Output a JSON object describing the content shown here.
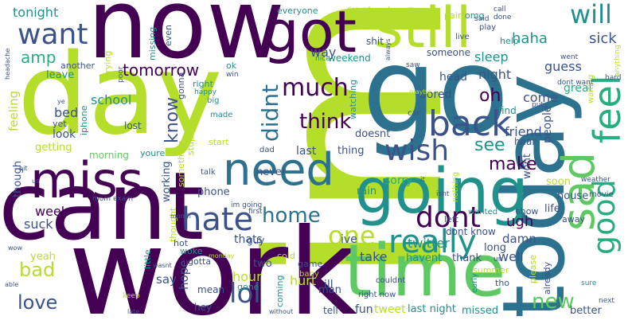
{
  "palette": {
    "purple": "#440154",
    "indigo": "#3b528b",
    "blue": "#2c728e",
    "teal": "#21918c",
    "green": "#27ad81",
    "lightgreen": "#5ec962",
    "lime": "#b5de2b",
    "yellow": "#fde725"
  },
  "words": [
    {
      "text": "im",
      "color": "lime"
    },
    {
      "text": "work",
      "color": "purple"
    },
    {
      "text": "day",
      "color": "lime"
    },
    {
      "text": "cant",
      "color": "purple"
    },
    {
      "text": "go",
      "color": "blue"
    },
    {
      "text": "now",
      "color": "purple"
    },
    {
      "text": "today",
      "color": "blue"
    },
    {
      "text": "time",
      "color": "lightgreen"
    },
    {
      "text": "got",
      "color": "purple"
    },
    {
      "text": "still",
      "color": "lime"
    },
    {
      "text": "miss",
      "color": "purple"
    },
    {
      "text": "going",
      "color": "teal"
    },
    {
      "text": "need",
      "color": "blue"
    },
    {
      "text": "sad",
      "color": "lightgreen"
    },
    {
      "text": "back",
      "color": "indigo"
    },
    {
      "text": "feel",
      "color": "green"
    },
    {
      "text": "hate",
      "color": "indigo"
    },
    {
      "text": "good",
      "color": "green"
    },
    {
      "text": "really",
      "color": "teal"
    },
    {
      "text": "wish",
      "color": "indigo"
    },
    {
      "text": "dont",
      "color": "purple"
    },
    {
      "text": "one",
      "color": "lime"
    },
    {
      "text": "lol",
      "color": "indigo"
    },
    {
      "text": "home",
      "color": "blue"
    },
    {
      "text": "will",
      "color": "teal"
    },
    {
      "text": "want",
      "color": "indigo"
    },
    {
      "text": "much",
      "color": "purple"
    },
    {
      "text": "think",
      "color": "purple"
    },
    {
      "text": "new",
      "color": "lightgreen"
    },
    {
      "text": "bad",
      "color": "lime"
    },
    {
      "text": "love",
      "color": "indigo"
    },
    {
      "text": "didnt",
      "color": "blue"
    },
    {
      "text": "know",
      "color": "indigo"
    },
    {
      "text": "make",
      "color": "purple"
    },
    {
      "text": "see",
      "color": "teal"
    },
    {
      "text": "oh",
      "color": "purple"
    },
    {
      "text": "tomorrow",
      "color": "purple"
    },
    {
      "text": "amp",
      "color": "green"
    },
    {
      "text": "tonight",
      "color": "teal"
    },
    {
      "text": "tired",
      "color": "lime"
    },
    {
      "text": "haha",
      "color": "teal"
    },
    {
      "text": "sick",
      "color": "indigo"
    },
    {
      "text": "guess",
      "color": "indigo"
    },
    {
      "text": "way",
      "color": "indigo"
    },
    {
      "text": "sleep",
      "color": "teal"
    },
    {
      "text": "night",
      "color": "indigo"
    },
    {
      "text": "come",
      "color": "indigo"
    },
    {
      "text": "people",
      "color": "indigo"
    },
    {
      "text": "great",
      "color": "green"
    },
    {
      "text": "feeling",
      "color": "lime"
    },
    {
      "text": "school",
      "color": "teal"
    },
    {
      "text": "bed",
      "color": "indigo"
    },
    {
      "text": "look",
      "color": "indigo"
    },
    {
      "text": "getting",
      "color": "lime"
    },
    {
      "text": "morning",
      "color": "lightgreen"
    },
    {
      "text": "working",
      "color": "indigo"
    },
    {
      "text": "never",
      "color": "indigo"
    },
    {
      "text": "last",
      "color": "indigo"
    },
    {
      "text": "thing",
      "color": "indigo"
    },
    {
      "text": "friend",
      "color": "indigo"
    },
    {
      "text": "sorry",
      "color": "green"
    },
    {
      "text": "rain",
      "color": "teal"
    },
    {
      "text": "wont",
      "color": "indigo"
    },
    {
      "text": "soon",
      "color": "lime"
    },
    {
      "text": "house",
      "color": "indigo"
    },
    {
      "text": "life",
      "color": "indigo"
    },
    {
      "text": "show",
      "color": "indigo"
    },
    {
      "text": "twitter",
      "color": "teal"
    },
    {
      "text": "ugh",
      "color": "purple"
    },
    {
      "text": "long",
      "color": "indigo"
    },
    {
      "text": "week",
      "color": "purple"
    },
    {
      "text": "suck",
      "color": "indigo"
    },
    {
      "text": "yeah",
      "color": "lime"
    },
    {
      "text": "say",
      "color": "indigo"
    },
    {
      "text": "hope",
      "color": "indigo"
    },
    {
      "text": "hour",
      "color": "lime"
    },
    {
      "text": "hurt",
      "color": "lime"
    },
    {
      "text": "ill",
      "color": "indigo"
    },
    {
      "text": "take",
      "color": "indigo"
    },
    {
      "text": "damn",
      "color": "indigo"
    },
    {
      "text": "well",
      "color": "indigo"
    },
    {
      "text": "thats",
      "color": "indigo"
    },
    {
      "text": "phone",
      "color": "indigo"
    },
    {
      "text": "ive",
      "color": "indigo"
    },
    {
      "text": "fun",
      "color": "indigo"
    },
    {
      "text": "tweet",
      "color": "lime"
    },
    {
      "text": "last night",
      "color": "teal"
    },
    {
      "text": "missed",
      "color": "teal"
    },
    {
      "text": "better",
      "color": "indigo"
    },
    {
      "text": "man",
      "color": "indigo"
    },
    {
      "text": "tell",
      "color": "indigo"
    },
    {
      "text": "hey",
      "color": "indigo"
    },
    {
      "text": "mean",
      "color": "indigo"
    },
    {
      "text": "gone",
      "color": "teal"
    },
    {
      "text": "head",
      "color": "indigo"
    },
    {
      "text": "bored",
      "color": "indigo"
    },
    {
      "text": "watching",
      "color": "teal"
    },
    {
      "text": "doesnt",
      "color": "indigo"
    },
    {
      "text": "find",
      "color": "teal"
    },
    {
      "text": "hear",
      "color": "indigo"
    },
    {
      "text": "weekend",
      "color": "teal"
    },
    {
      "text": "shit",
      "color": "indigo"
    },
    {
      "text": "someone",
      "color": "indigo"
    },
    {
      "text": "help",
      "color": "teal"
    },
    {
      "text": "leave",
      "color": "teal"
    },
    {
      "text": "another",
      "color": "indigo"
    },
    {
      "text": "even",
      "color": "indigo"
    },
    {
      "text": "missing",
      "color": "teal"
    },
    {
      "text": "trying",
      "color": "lime"
    },
    {
      "text": "gonna",
      "color": "indigo"
    },
    {
      "text": "right",
      "color": "teal"
    },
    {
      "text": "ok",
      "color": "teal"
    },
    {
      "text": "lost",
      "color": "indigo"
    },
    {
      "text": "iphone",
      "color": "teal"
    },
    {
      "text": "yet",
      "color": "indigo"
    },
    {
      "text": "youre",
      "color": "teal"
    },
    {
      "text": "made",
      "color": "teal"
    },
    {
      "text": "stupid",
      "color": "lime"
    },
    {
      "text": "something",
      "color": "lime"
    },
    {
      "text": "start",
      "color": "lime"
    },
    {
      "text": "dad",
      "color": "indigo"
    },
    {
      "text": "talk",
      "color": "indigo"
    },
    {
      "text": "though",
      "color": "indigo"
    },
    {
      "text": "little",
      "color": "teal"
    },
    {
      "text": "thought",
      "color": "lime"
    },
    {
      "text": "hot",
      "color": "indigo"
    },
    {
      "text": "woke",
      "color": "teal"
    },
    {
      "text": "gotta",
      "color": "indigo"
    },
    {
      "text": "guy",
      "color": "indigo"
    },
    {
      "text": "two",
      "color": "indigo"
    },
    {
      "text": "coming",
      "color": "teal"
    },
    {
      "text": "cold",
      "color": "lime"
    },
    {
      "text": "game",
      "color": "indigo"
    },
    {
      "text": "dont know",
      "color": "indigo"
    },
    {
      "text": "havent",
      "color": "teal"
    },
    {
      "text": "thank",
      "color": "indigo"
    },
    {
      "text": "summer",
      "color": "lime"
    },
    {
      "text": "already",
      "color": "indigo"
    },
    {
      "text": "please",
      "color": "lime"
    },
    {
      "text": "tho",
      "color": "indigo"
    },
    {
      "text": "nothing",
      "color": "lime"
    },
    {
      "text": "away",
      "color": "indigo"
    },
    {
      "text": "wanted",
      "color": "teal"
    },
    {
      "text": "left",
      "color": "indigo"
    },
    {
      "text": "early",
      "color": "teal"
    },
    {
      "text": "couldnt",
      "color": "indigo"
    },
    {
      "text": "right now",
      "color": "indigo"
    },
    {
      "text": "baby",
      "color": "lime"
    },
    {
      "text": "first",
      "color": "indigo"
    },
    {
      "text": "im going",
      "color": "indigo"
    },
    {
      "text": "isnt",
      "color": "indigo"
    },
    {
      "text": "movie",
      "color": "indigo"
    },
    {
      "text": "weather",
      "color": "indigo"
    },
    {
      "text": "next",
      "color": "indigo"
    },
    {
      "text": "sure",
      "color": "teal"
    },
    {
      "text": "waiting",
      "color": "lime"
    },
    {
      "text": "hard",
      "color": "indigo"
    },
    {
      "text": "dont want",
      "color": "indigo"
    },
    {
      "text": "went",
      "color": "indigo"
    },
    {
      "text": "anything",
      "color": "lime"
    },
    {
      "text": "call",
      "color": "indigo"
    },
    {
      "text": "done",
      "color": "indigo"
    },
    {
      "text": "omg",
      "color": "teal"
    },
    {
      "text": "pain",
      "color": "lime"
    },
    {
      "text": "play",
      "color": "indigo"
    },
    {
      "text": "said",
      "color": "indigo"
    },
    {
      "text": "live",
      "color": "indigo"
    },
    {
      "text": "saw",
      "color": "indigo"
    },
    {
      "text": "always",
      "color": "indigo"
    },
    {
      "text": "nice",
      "color": "teal"
    },
    {
      "text": "everyone",
      "color": "teal"
    },
    {
      "text": "dog",
      "color": "lime"
    },
    {
      "text": "poor",
      "color": "indigo"
    },
    {
      "text": "win",
      "color": "indigo"
    },
    {
      "text": "big",
      "color": "teal"
    },
    {
      "text": "happy",
      "color": "teal"
    },
    {
      "text": "headache",
      "color": "indigo"
    },
    {
      "text": "ye",
      "color": "indigo"
    },
    {
      "text": "wow",
      "color": "indigo"
    },
    {
      "text": "able",
      "color": "indigo"
    },
    {
      "text": "bit",
      "color": "indigo"
    },
    {
      "text": "us",
      "color": "indigo"
    },
    {
      "text": "mom",
      "color": "indigo"
    },
    {
      "text": "exam",
      "color": "indigo"
    },
    {
      "text": "month",
      "color": "indigo"
    },
    {
      "text": "monday",
      "color": "lime"
    },
    {
      "text": "wasnt",
      "color": "indigo"
    },
    {
      "text": "keep",
      "color": "lime"
    },
    {
      "text": "late",
      "color": "indigo"
    },
    {
      "text": "without",
      "color": "indigo"
    },
    {
      "text": "car",
      "color": "indigo"
    },
    {
      "text": "maybe",
      "color": "lime"
    },
    {
      "text": "put",
      "color": "indigo"
    },
    {
      "text": "ur",
      "color": "indigo"
    },
    {
      "text": "it",
      "color": "indigo"
    }
  ]
}
